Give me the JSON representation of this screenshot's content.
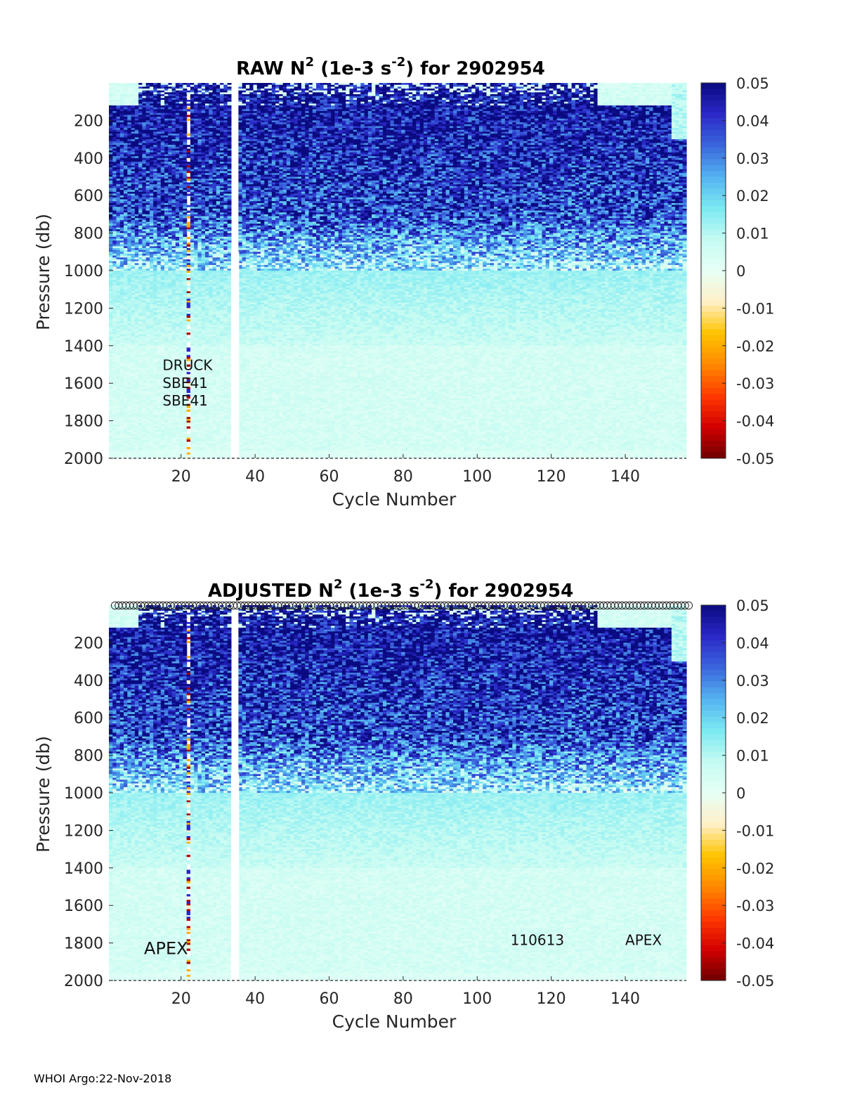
{
  "colors": {
    "colormap_stops": [
      "#6e0000",
      "#d40000",
      "#ff3a00",
      "#ff8a00",
      "#ffc400",
      "#fff0c8",
      "#e6fff6",
      "#c4fbf2",
      "#7be9f2",
      "#54b2f0",
      "#3a66dc",
      "#2a28c8",
      "#0a0a80"
    ],
    "gap_color": "#ffffff",
    "axis_color": "#262626"
  },
  "footer": {
    "text": "WHOI Argo:22-Nov-2018"
  },
  "chart_data": [
    {
      "type": "heatmap",
      "title": "RAW N",
      "title_sup": "2",
      "title_mid": " (1e-3 s",
      "title_sup2": "-2",
      "title_end": ") for 2902954",
      "xlabel": "Cycle Number",
      "ylabel": "Pressure (db)",
      "xlim": [
        1,
        156
      ],
      "ylim": [
        0,
        2000
      ],
      "y_reversed": true,
      "xticks": [
        20,
        40,
        60,
        80,
        100,
        120,
        140
      ],
      "yticks": [
        200,
        400,
        600,
        800,
        1000,
        1200,
        1400,
        1600,
        1800,
        2000
      ],
      "colorbar": {
        "min": -0.05,
        "max": 0.05,
        "ticks": [
          "0.05",
          "0.04",
          "0.03",
          "0.02",
          "0.01",
          "0",
          "-0.01",
          "-0.02",
          "-0.03",
          "-0.04",
          "-0.05"
        ]
      },
      "missing_cycles": [
        34,
        35
      ],
      "annotations": [
        {
          "text": "DRUCK",
          "x": 15,
          "y": 1530
        },
        {
          "text": "SBE41",
          "x": 15,
          "y": 1625
        },
        {
          "text": "SBE41",
          "x": 15,
          "y": 1720
        }
      ],
      "qc_markers": false
    },
    {
      "type": "heatmap",
      "title": "ADJUSTED N",
      "title_sup": "2",
      "title_mid": " (1e-3 s",
      "title_sup2": "-2",
      "title_end": ") for 2902954",
      "xlabel": "Cycle Number",
      "ylabel": "Pressure (db)",
      "xlim": [
        1,
        156
      ],
      "ylim": [
        0,
        2000
      ],
      "y_reversed": true,
      "xticks": [
        20,
        40,
        60,
        80,
        100,
        120,
        140
      ],
      "yticks": [
        200,
        400,
        600,
        800,
        1000,
        1200,
        1400,
        1600,
        1800,
        2000
      ],
      "colorbar": {
        "min": -0.05,
        "max": 0.05,
        "ticks": [
          "0.05",
          "0.04",
          "0.03",
          "0.02",
          "0.01",
          "0",
          "-0.01",
          "-0.02",
          "-0.03",
          "-0.04",
          "-0.05"
        ]
      },
      "missing_cycles": [
        34,
        35
      ],
      "annotations": [
        {
          "text": "APEX",
          "x": 10,
          "y": 1860
        },
        {
          "text": "110613",
          "x": 109,
          "y": 1810
        },
        {
          "text": "APEX",
          "x": 140,
          "y": 1810
        }
      ],
      "qc_markers": true
    }
  ]
}
